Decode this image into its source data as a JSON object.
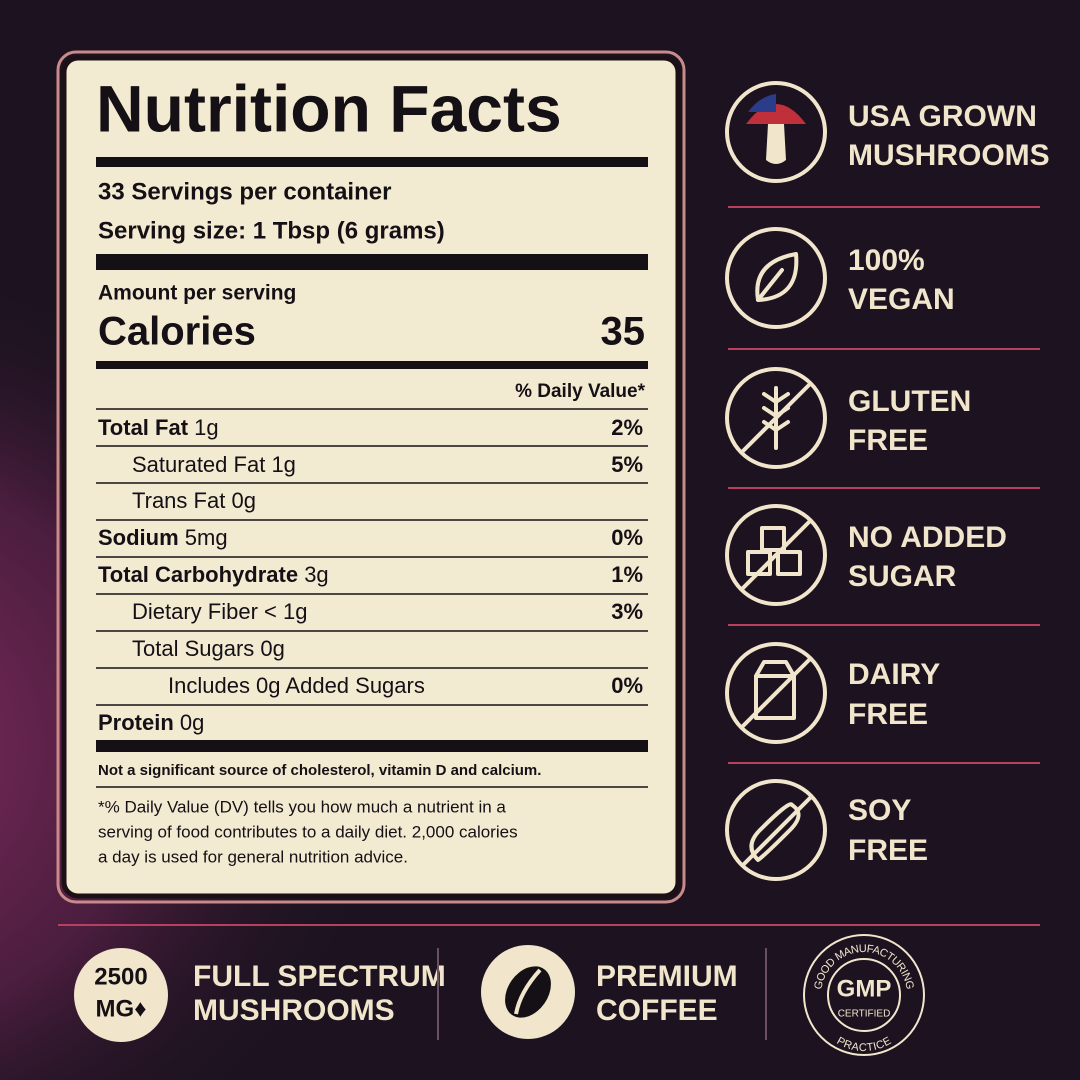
{
  "nutrition": {
    "title": "Nutrition Facts",
    "servings": "33 Servings per container",
    "serving_size": "Serving size: 1 Tbsp (6 grams)",
    "amount_per_serving": "Amount per serving",
    "calories_label": "Calories",
    "calories": 35,
    "daily_value_header": "% Daily Value*",
    "rows": [
      {
        "name": "Total Fat",
        "amount": "1g",
        "dv": "2%"
      },
      {
        "name": "Saturated Fat",
        "amount": "1g",
        "dv": "5%"
      },
      {
        "name": "Trans Fat",
        "amount": "0g"
      },
      {
        "name": "Sodium",
        "amount": "5mg",
        "dv": "0%"
      },
      {
        "name": "Total Carbohydrate",
        "amount": "3g",
        "dv": "1%"
      },
      {
        "name": "Dietary Fiber",
        "amount": "< 1g",
        "dv": "3%"
      },
      {
        "name": "Total Sugars",
        "amount": "0g"
      },
      {
        "name": "Includes 0g Added Sugars",
        "dv": "0%"
      },
      {
        "name": "Protein",
        "amount": "0g"
      }
    ],
    "note": "Not a significant source of cholesterol, vitamin D and calcium.",
    "footnote": [
      "*% Daily Value (DV) tells you how much a nutrient in a",
      "serving of food contributes to a daily diet. 2,000 calories",
      "a day is used for general nutrition advice."
    ]
  },
  "badges": [
    {
      "lines": [
        "USA GROWN",
        "MUSHROOMS"
      ]
    },
    {
      "lines": [
        "100%",
        "VEGAN"
      ]
    },
    {
      "lines": [
        "GLUTEN",
        "FREE"
      ]
    },
    {
      "lines": [
        "NO ADDED",
        "SUGAR"
      ]
    },
    {
      "lines": [
        "DAIRY",
        "FREE"
      ]
    },
    {
      "lines": [
        "SOY",
        "FREE"
      ]
    }
  ],
  "features": [
    {
      "badge": [
        "2500",
        "MG♦"
      ],
      "lines": [
        "FULL SPECTRUM",
        "MUSHROOMS"
      ]
    },
    {
      "lines": [
        "PREMIUM",
        "COFFEE"
      ]
    },
    {
      "seal": {
        "top": "GOOD MANUFACTURING",
        "center": "GMP",
        "sub": "CERTIFIED",
        "bottom": "PRACTICE"
      }
    }
  ]
}
